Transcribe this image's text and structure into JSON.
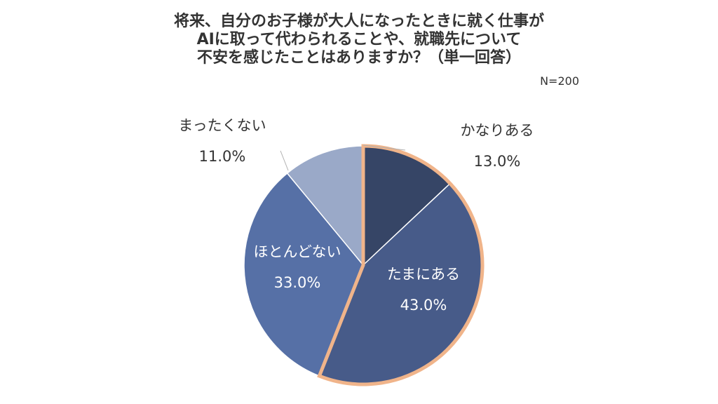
{
  "title_lines": [
    "将来、自分のお子様が大人になったときに就く仕事が",
    "AIに取って代わられることや、就職先について",
    "不安を感じたことはありますか？（単一回答）"
  ],
  "sample_size": "N=200",
  "colors": {
    "highlight_border": "#f0b48a",
    "leader_line": "#b0b0b0",
    "outside_text": "#333333",
    "inside_text": "#ffffff"
  },
  "chart_data": {
    "type": "pie",
    "title": "将来、自分のお子様が大人になったときに就く仕事がAIに取って代わられることや、就職先について不安を感じたことはありますか？（単一回答）",
    "subtitle": "N=200",
    "start_angle_deg": 0,
    "direction": "clockwise",
    "slices": [
      {
        "label": "かなりある",
        "value": 13.0,
        "value_label": "13.0%",
        "color": "#364566",
        "label_position": "outside",
        "highlighted": true
      },
      {
        "label": "たまにある",
        "value": 43.0,
        "value_label": "43.0%",
        "color": "#475b89",
        "label_position": "inside",
        "highlighted": true
      },
      {
        "label": "ほとんどない",
        "value": 33.0,
        "value_label": "33.0%",
        "color": "#5670a6",
        "label_position": "inside",
        "highlighted": false
      },
      {
        "label": "まったくない",
        "value": 11.0,
        "value_label": "11.0%",
        "color": "#9aa9c8",
        "label_position": "outside",
        "highlighted": false
      }
    ]
  }
}
